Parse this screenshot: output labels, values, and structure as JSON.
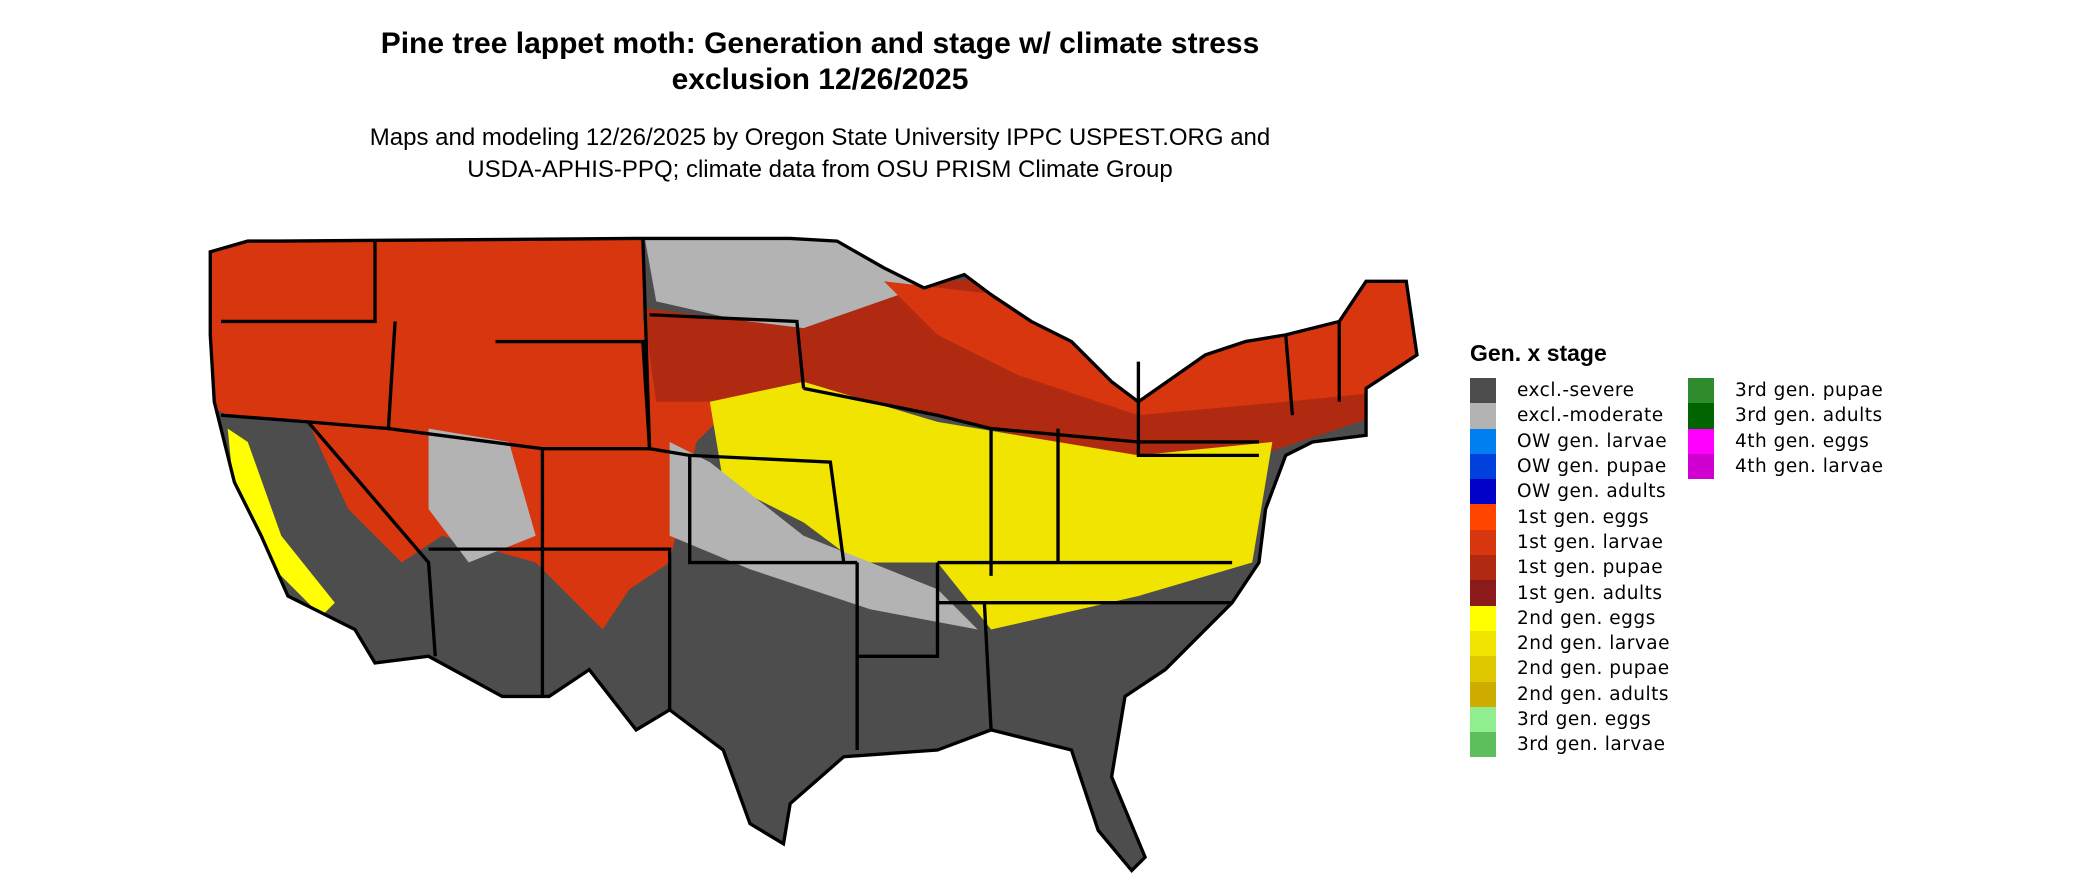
{
  "title_line1": "Pine tree lappet moth: Generation and stage w/ climate stress",
  "title_line2": "exclusion 12/26/2025",
  "subtitle_line1": "Maps and modeling 12/26/2025 by Oregon State University IPPC USPEST.ORG and",
  "subtitle_line2": "USDA-APHIS-PPQ; climate data from OSU PRISM Climate Group",
  "legend": {
    "title": "Gen. x stage",
    "items": [
      {
        "label": "excl.-severe",
        "color": "#4d4d4d"
      },
      {
        "label": "excl.-moderate",
        "color": "#b3b3b3"
      },
      {
        "label": "OW gen. larvae",
        "color": "#0080f0"
      },
      {
        "label": "OW gen. pupae",
        "color": "#0040dc"
      },
      {
        "label": "OW gen. adults",
        "color": "#0000c8"
      },
      {
        "label": "1st gen. eggs",
        "color": "#ff4500"
      },
      {
        "label": "1st gen. larvae",
        "color": "#d8360e"
      },
      {
        "label": "1st gen. pupae",
        "color": "#b02a12"
      },
      {
        "label": "1st gen. adults",
        "color": "#8b1a1a"
      },
      {
        "label": "2nd gen. eggs",
        "color": "#ffff00"
      },
      {
        "label": "2nd gen. larvae",
        "color": "#f0e400"
      },
      {
        "label": "2nd gen. pupae",
        "color": "#e0c800"
      },
      {
        "label": "2nd gen. adults",
        "color": "#cfad00"
      },
      {
        "label": "3rd gen. eggs",
        "color": "#90ee90"
      },
      {
        "label": "3rd gen. larvae",
        "color": "#5cbf5c"
      },
      {
        "label": "3rd gen. pupae",
        "color": "#2e8b2e"
      },
      {
        "label": "3rd gen. adults",
        "color": "#006400"
      },
      {
        "label": "4th gen. eggs",
        "color": "#ff00ff"
      },
      {
        "label": "4th gen. larvae",
        "color": "#d000d0"
      }
    ]
  }
}
